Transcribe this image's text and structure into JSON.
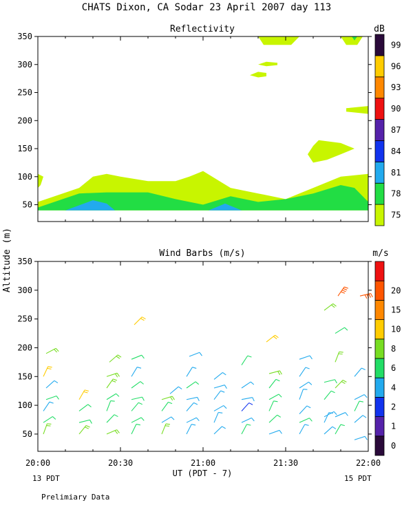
{
  "title": "CHATS Dixon, CA  Sodar  23 April 2007  day 113",
  "y_axis_label": "Altitude (m)",
  "x_axis_label": "UT  (PDT - 7)",
  "left_time_note": "13 PDT",
  "right_time_note": "15 PDT",
  "footer_note": "Prelimiary Data",
  "x_ticks": [
    "20:00",
    "20:30",
    "21:00",
    "21:30",
    "22:00"
  ],
  "chart_data": [
    {
      "type": "heatmap",
      "title": "Reflectivity",
      "xlabel": "UT  (PDT - 7)",
      "ylabel": "Altitude (m)",
      "xlim": [
        "20:00",
        "22:00"
      ],
      "ylim": [
        20,
        350
      ],
      "yticks": [
        50,
        100,
        150,
        200,
        250,
        300,
        350
      ],
      "colorbar": {
        "unit": "dB",
        "tick_labels": [
          "75",
          "78",
          "81",
          "84",
          "87",
          "90",
          "93",
          "96",
          "99"
        ],
        "levels": [
          {
            "value": 75,
            "color": "#c8f500"
          },
          {
            "value": 78,
            "color": "#22dd44"
          },
          {
            "value": 81,
            "color": "#22aaee"
          },
          {
            "value": 84,
            "color": "#1133ee"
          },
          {
            "value": 87,
            "color": "#5522aa"
          },
          {
            "value": 90,
            "color": "#ee1111"
          },
          {
            "value": 93,
            "color": "#ff8800"
          },
          {
            "value": 96,
            "color": "#ffcc00"
          },
          {
            "value": 99,
            "color": "#2a0a3a"
          }
        ]
      },
      "regions": [
        {
          "level": 75,
          "points": [
            [
              "20:00",
              55
            ],
            [
              "20:15",
              80
            ],
            [
              "20:20",
              100
            ],
            [
              "20:25",
              105
            ],
            [
              "20:30",
              100
            ],
            [
              "20:40",
              92
            ],
            [
              "20:50",
              92
            ],
            [
              "20:55",
              100
            ],
            [
              "21:00",
              110
            ],
            [
              "21:05",
              95
            ],
            [
              "21:10",
              80
            ],
            [
              "21:20",
              70
            ],
            [
              "21:30",
              60
            ],
            [
              "21:40",
              80
            ],
            [
              "21:50",
              100
            ],
            [
              "22:00",
              105
            ],
            [
              "22:00",
              40
            ],
            [
              "20:00",
              40
            ]
          ]
        },
        {
          "level": 75,
          "points": [
            [
              "20:00",
              105
            ],
            [
              "20:02",
              100
            ],
            [
              "20:01",
              85
            ],
            [
              "20:00",
              80
            ]
          ]
        },
        {
          "level": 75,
          "points": [
            [
              "21:42",
              165
            ],
            [
              "21:50",
              160
            ],
            [
              "21:55",
              150
            ],
            [
              "21:50",
              140
            ],
            [
              "21:45",
              130
            ],
            [
              "21:40",
              125
            ],
            [
              "21:38",
              140
            ],
            [
              "21:40",
              155
            ]
          ]
        },
        {
          "level": 75,
          "points": [
            [
              "21:20",
              287
            ],
            [
              "21:23",
              285
            ],
            [
              "21:23",
              279
            ],
            [
              "21:20",
              277
            ],
            [
              "21:17",
              281
            ]
          ]
        },
        {
          "level": 75,
          "points": [
            [
              "21:23",
              305
            ],
            [
              "21:27",
              303
            ],
            [
              "21:27",
              299
            ],
            [
              "21:23",
              297
            ],
            [
              "21:20",
              300
            ]
          ]
        },
        {
          "level": 75,
          "points": [
            [
              "21:20",
              350
            ],
            [
              "21:35",
              350
            ],
            [
              "21:32",
              335
            ],
            [
              "21:22",
              335
            ]
          ]
        },
        {
          "level": 75,
          "points": [
            [
              "21:50",
              350
            ],
            [
              "21:58",
              350
            ],
            [
              "21:56",
              335
            ],
            [
              "21:52",
              335
            ]
          ]
        },
        {
          "level": 75,
          "points": [
            [
              "21:52",
              222
            ],
            [
              "22:00",
              226
            ],
            [
              "22:00",
              212
            ],
            [
              "21:52",
              216
            ]
          ]
        },
        {
          "level": 78,
          "points": [
            [
              "20:00",
              45
            ],
            [
              "20:15",
              70
            ],
            [
              "20:25",
              72
            ],
            [
              "20:40",
              72
            ],
            [
              "20:50",
              60
            ],
            [
              "21:00",
              50
            ],
            [
              "21:10",
              65
            ],
            [
              "21:20",
              55
            ],
            [
              "21:30",
              60
            ],
            [
              "21:40",
              70
            ],
            [
              "21:50",
              85
            ],
            [
              "21:55",
              80
            ],
            [
              "22:00",
              55
            ],
            [
              "22:00",
              40
            ],
            [
              "20:00",
              40
            ]
          ]
        },
        {
          "level": 78,
          "points": [
            [
              "21:54",
              350
            ],
            [
              "21:56",
              350
            ],
            [
              "21:55",
              343
            ]
          ]
        },
        {
          "level": 81,
          "points": [
            [
              "20:10",
              40
            ],
            [
              "20:20",
              58
            ],
            [
              "20:25",
              52
            ],
            [
              "20:28",
              40
            ]
          ]
        },
        {
          "level": 81,
          "points": [
            [
              "21:02",
              40
            ],
            [
              "21:08",
              52
            ],
            [
              "21:14",
              40
            ]
          ]
        }
      ]
    },
    {
      "type": "scatter",
      "title": "Wind Barbs (m/s)",
      "xlabel": "UT  (PDT - 7)",
      "ylabel": "Altitude (m)",
      "xlim": [
        "20:00",
        "22:00"
      ],
      "ylim": [
        20,
        350
      ],
      "yticks": [
        50,
        100,
        150,
        200,
        250,
        300,
        350
      ],
      "colorbar": {
        "unit": "m/s",
        "tick_labels": [
          "0",
          "1",
          "2",
          "4",
          "6",
          "8",
          "10",
          "15",
          "20"
        ],
        "levels": [
          {
            "value": 0,
            "color": "#2a0a3a"
          },
          {
            "value": 1,
            "color": "#5522aa"
          },
          {
            "value": 2,
            "color": "#1133ee"
          },
          {
            "value": 4,
            "color": "#22aaee"
          },
          {
            "value": 6,
            "color": "#22dd66"
          },
          {
            "value": 8,
            "color": "#77dd22"
          },
          {
            "value": 10,
            "color": "#ffcc00"
          },
          {
            "value": 15,
            "color": "#ff8800"
          },
          {
            "value": 20,
            "color": "#ff5500"
          },
          {
            "value": 25,
            "color": "#ee1111"
          }
        ]
      },
      "barbs": [
        {
          "time": "20:02",
          "alt": 50,
          "speed": 9
        },
        {
          "time": "20:02",
          "alt": 70,
          "speed": 7
        },
        {
          "time": "20:02",
          "alt": 90,
          "speed": 4
        },
        {
          "time": "20:03",
          "alt": 110,
          "speed": 6
        },
        {
          "time": "20:03",
          "alt": 130,
          "speed": 5
        },
        {
          "time": "20:02",
          "alt": 150,
          "speed": 10
        },
        {
          "time": "20:03",
          "alt": 190,
          "speed": 9
        },
        {
          "time": "20:15",
          "alt": 50,
          "speed": 8
        },
        {
          "time": "20:15",
          "alt": 70,
          "speed": 6
        },
        {
          "time": "20:15",
          "alt": 90,
          "speed": 7
        },
        {
          "time": "20:15",
          "alt": 110,
          "speed": 10
        },
        {
          "time": "20:25",
          "alt": 50,
          "speed": 8
        },
        {
          "time": "20:25",
          "alt": 70,
          "speed": 7
        },
        {
          "time": "20:25",
          "alt": 90,
          "speed": 6
        },
        {
          "time": "20:25",
          "alt": 110,
          "speed": 6
        },
        {
          "time": "20:25",
          "alt": 130,
          "speed": 9
        },
        {
          "time": "20:25",
          "alt": 150,
          "speed": 8
        },
        {
          "time": "20:26",
          "alt": 175,
          "speed": 9
        },
        {
          "time": "20:34",
          "alt": 50,
          "speed": 6
        },
        {
          "time": "20:34",
          "alt": 70,
          "speed": 7
        },
        {
          "time": "20:34",
          "alt": 90,
          "speed": 6
        },
        {
          "time": "20:34",
          "alt": 110,
          "speed": 6
        },
        {
          "time": "20:34",
          "alt": 130,
          "speed": 6
        },
        {
          "time": "20:34",
          "alt": 150,
          "speed": 5
        },
        {
          "time": "20:34",
          "alt": 180,
          "speed": 6
        },
        {
          "time": "20:35",
          "alt": 240,
          "speed": 10
        },
        {
          "time": "20:45",
          "alt": 50,
          "speed": 8
        },
        {
          "time": "20:45",
          "alt": 70,
          "speed": 5
        },
        {
          "time": "20:45",
          "alt": 90,
          "speed": 6
        },
        {
          "time": "20:45",
          "alt": 110,
          "speed": 9
        },
        {
          "time": "20:48",
          "alt": 120,
          "speed": 4
        },
        {
          "time": "20:54",
          "alt": 50,
          "speed": 5
        },
        {
          "time": "20:54",
          "alt": 70,
          "speed": 4
        },
        {
          "time": "20:54",
          "alt": 90,
          "speed": 5
        },
        {
          "time": "20:54",
          "alt": 110,
          "speed": 5
        },
        {
          "time": "20:54",
          "alt": 130,
          "speed": 6
        },
        {
          "time": "20:54",
          "alt": 150,
          "speed": 5
        },
        {
          "time": "20:55",
          "alt": 185,
          "speed": 5
        },
        {
          "time": "21:04",
          "alt": 50,
          "speed": 5
        },
        {
          "time": "21:04",
          "alt": 70,
          "speed": 4
        },
        {
          "time": "21:04",
          "alt": 90,
          "speed": 5
        },
        {
          "time": "21:04",
          "alt": 110,
          "speed": 5
        },
        {
          "time": "21:04",
          "alt": 130,
          "speed": 5
        },
        {
          "time": "21:04",
          "alt": 145,
          "speed": 4
        },
        {
          "time": "21:14",
          "alt": 50,
          "speed": 6
        },
        {
          "time": "21:14",
          "alt": 70,
          "speed": 5
        },
        {
          "time": "21:14",
          "alt": 90,
          "speed": 3
        },
        {
          "time": "21:14",
          "alt": 110,
          "speed": 5
        },
        {
          "time": "21:14",
          "alt": 130,
          "speed": 5
        },
        {
          "time": "21:14",
          "alt": 170,
          "speed": 7
        },
        {
          "time": "21:24",
          "alt": 50,
          "speed": 5
        },
        {
          "time": "21:24",
          "alt": 70,
          "speed": 6
        },
        {
          "time": "21:24",
          "alt": 90,
          "speed": 6
        },
        {
          "time": "21:24",
          "alt": 110,
          "speed": 6
        },
        {
          "time": "21:24",
          "alt": 130,
          "speed": 7
        },
        {
          "time": "21:24",
          "alt": 155,
          "speed": 9
        },
        {
          "time": "21:23",
          "alt": 210,
          "speed": 10
        },
        {
          "time": "21:35",
          "alt": 50,
          "speed": 5
        },
        {
          "time": "21:35",
          "alt": 70,
          "speed": 6
        },
        {
          "time": "21:35",
          "alt": 85,
          "speed": 4
        },
        {
          "time": "21:35",
          "alt": 110,
          "speed": 5
        },
        {
          "time": "21:35",
          "alt": 130,
          "speed": 5
        },
        {
          "time": "21:35",
          "alt": 150,
          "speed": 5
        },
        {
          "time": "21:35",
          "alt": 180,
          "speed": 5
        },
        {
          "time": "21:44",
          "alt": 50,
          "speed": 5
        },
        {
          "time": "21:44",
          "alt": 70,
          "speed": 5
        },
        {
          "time": "21:44",
          "alt": 80,
          "speed": 4
        },
        {
          "time": "21:44",
          "alt": 110,
          "speed": 6
        },
        {
          "time": "21:44",
          "alt": 140,
          "speed": 6
        },
        {
          "time": "21:44",
          "alt": 265,
          "speed": 9
        },
        {
          "time": "21:48",
          "alt": 50,
          "speed": 6
        },
        {
          "time": "21:48",
          "alt": 80,
          "speed": 5
        },
        {
          "time": "21:48",
          "alt": 130,
          "speed": 9
        },
        {
          "time": "21:48",
          "alt": 175,
          "speed": 8
        },
        {
          "time": "21:48",
          "alt": 225,
          "speed": 6
        },
        {
          "time": "21:49",
          "alt": 290,
          "speed": 22
        },
        {
          "time": "21:55",
          "alt": 40,
          "speed": 4
        },
        {
          "time": "21:55",
          "alt": 70,
          "speed": 5
        },
        {
          "time": "21:55",
          "alt": 90,
          "speed": 6
        },
        {
          "time": "21:55",
          "alt": 110,
          "speed": 5
        },
        {
          "time": "21:55",
          "alt": 150,
          "speed": 5
        },
        {
          "time": "21:57",
          "alt": 290,
          "speed": 22
        }
      ]
    }
  ]
}
